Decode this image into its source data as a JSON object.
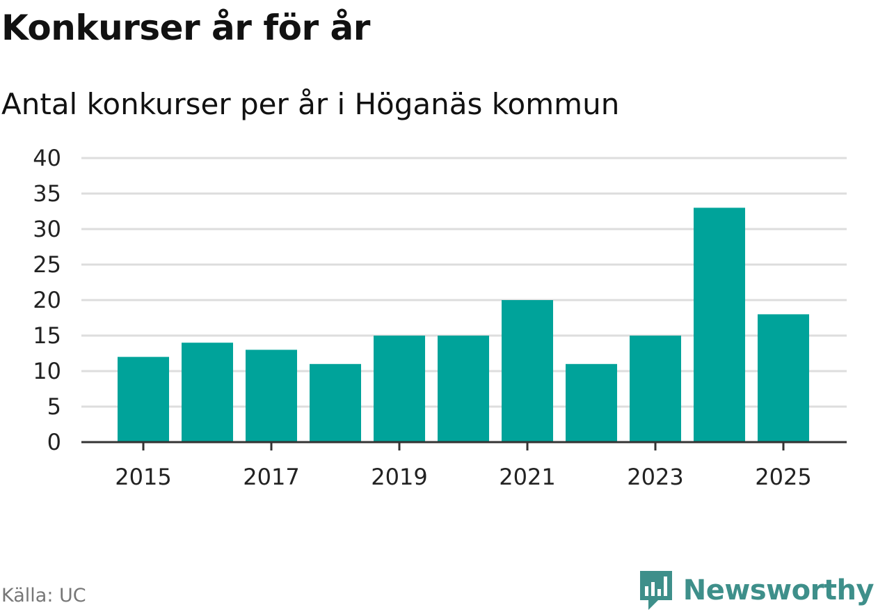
{
  "header": {
    "title": "Konkurser år för år",
    "subtitle": "Antal konkurser per år i Höganäs kommun"
  },
  "chart_data": {
    "type": "bar",
    "categories": [
      "2015",
      "2016",
      "2017",
      "2018",
      "2019",
      "2020",
      "2021",
      "2022",
      "2023",
      "2024",
      "2025"
    ],
    "values": [
      12,
      14,
      13,
      11,
      15,
      15,
      20,
      11,
      15,
      33,
      18
    ],
    "x_tick_labels": [
      "2015",
      "2017",
      "2019",
      "2021",
      "2023",
      "2025"
    ],
    "y_ticks": [
      "0",
      "5",
      "10",
      "15",
      "20",
      "25",
      "30",
      "35",
      "40"
    ],
    "ylim": [
      0,
      40
    ],
    "grid": true,
    "bar_color": "#00a39a"
  },
  "footer": {
    "source": "Källa: UC",
    "brand": "Newsworthy",
    "brand_icon": "newsworthy-logo-icon",
    "brand_color": "#3e8f8a"
  }
}
